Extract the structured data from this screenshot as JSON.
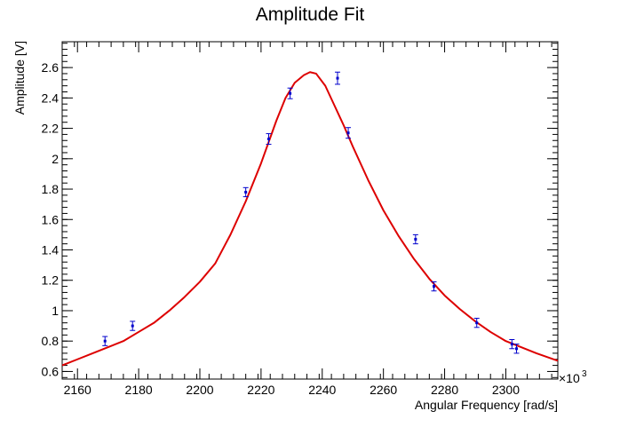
{
  "chart_data": {
    "type": "scatter",
    "title": "Amplitude Fit",
    "xlabel": "Angular Frequency [rad/s]",
    "ylabel": "Amplitude [V]",
    "x_exponent_label": "×10",
    "x_exponent_power": "3",
    "xlim": [
      2155,
      2317
    ],
    "ylim": [
      0.55,
      2.77
    ],
    "x_ticks": [
      2160,
      2180,
      2200,
      2220,
      2240,
      2260,
      2280,
      2300
    ],
    "y_ticks": [
      0.6,
      0.8,
      1,
      1.2,
      1.4,
      1.6,
      1.8,
      2,
      2.2,
      2.4,
      2.6
    ],
    "x_tick_labels": [
      "2160",
      "2180",
      "2200",
      "2220",
      "2240",
      "2260",
      "2280",
      "2300"
    ],
    "y_tick_labels": [
      "0.6",
      "0.8",
      "1",
      "1.2",
      "1.4",
      "1.6",
      "1.8",
      "2",
      "2.2",
      "2.4",
      "2.6"
    ],
    "grid": false,
    "series": [
      {
        "kind": "points_with_error_bars",
        "color": "#0000cc",
        "points": [
          {
            "x": 2169.0,
            "y": 0.8,
            "err": 0.03
          },
          {
            "x": 2178.0,
            "y": 0.9,
            "err": 0.03
          },
          {
            "x": 2215.0,
            "y": 1.78,
            "err": 0.03
          },
          {
            "x": 2222.5,
            "y": 2.13,
            "err": 0.035
          },
          {
            "x": 2229.5,
            "y": 2.43,
            "err": 0.035
          },
          {
            "x": 2245.0,
            "y": 2.53,
            "err": 0.04
          },
          {
            "x": 2248.5,
            "y": 2.17,
            "err": 0.035
          },
          {
            "x": 2270.5,
            "y": 1.47,
            "err": 0.03
          },
          {
            "x": 2276.5,
            "y": 1.16,
            "err": 0.03
          },
          {
            "x": 2290.5,
            "y": 0.92,
            "err": 0.03
          },
          {
            "x": 2302.0,
            "y": 0.78,
            "err": 0.03
          },
          {
            "x": 2303.5,
            "y": 0.75,
            "err": 0.03
          }
        ]
      },
      {
        "kind": "fit_curve",
        "color": "#dd0000",
        "x": [
          2155,
          2160,
          2165,
          2170,
          2175,
          2180,
          2185,
          2190,
          2195,
          2200,
          2205,
          2210,
          2215,
          2220,
          2225,
          2228,
          2231,
          2234,
          2236,
          2238,
          2241,
          2244,
          2247,
          2250,
          2255,
          2260,
          2265,
          2270,
          2275,
          2280,
          2285,
          2290,
          2295,
          2300,
          2305,
          2310,
          2317
        ],
        "y": [
          0.64,
          0.68,
          0.72,
          0.76,
          0.8,
          0.86,
          0.92,
          1.0,
          1.09,
          1.19,
          1.31,
          1.5,
          1.72,
          1.97,
          2.25,
          2.4,
          2.5,
          2.55,
          2.57,
          2.56,
          2.48,
          2.35,
          2.22,
          2.08,
          1.86,
          1.66,
          1.49,
          1.34,
          1.21,
          1.1,
          1.01,
          0.93,
          0.86,
          0.8,
          0.76,
          0.72,
          0.67
        ]
      }
    ]
  }
}
